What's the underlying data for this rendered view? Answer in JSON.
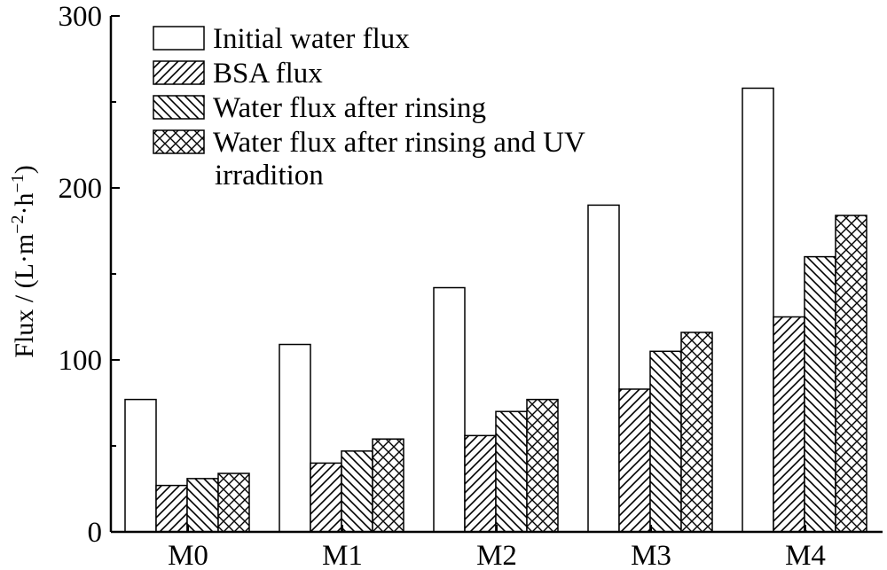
{
  "chart_data": {
    "type": "bar",
    "categories": [
      "M0",
      "M1",
      "M2",
      "M3",
      "M4"
    ],
    "series": [
      {
        "name": "Initial water flux",
        "values": [
          77,
          109,
          142,
          190,
          258
        ],
        "pattern": "none"
      },
      {
        "name": "BSA flux",
        "values": [
          27,
          40,
          56,
          83,
          125
        ],
        "pattern": "forward-hatch"
      },
      {
        "name": "Water flux after rinsing",
        "values": [
          31,
          47,
          70,
          105,
          160
        ],
        "pattern": "back-hatch"
      },
      {
        "name": "Water flux after rinsing and UV irradition",
        "values": [
          34,
          54,
          77,
          116,
          184
        ],
        "pattern": "cross-hatch"
      }
    ],
    "legend_lines": [
      [
        "Initial water flux"
      ],
      [
        "BSA flux"
      ],
      [
        "Water flux after rinsing"
      ],
      [
        "Water flux after rinsing and UV",
        "irradition"
      ]
    ],
    "ylabel_main": "Flux / (L·m",
    "ylabel_sup1": "−2",
    "ylabel_mid": "·h",
    "ylabel_sup2": "−1",
    "ylabel_end": ")",
    "xlabel": "",
    "ylim": [
      0,
      300
    ],
    "yticks": [
      0,
      100,
      200,
      300
    ],
    "grid": false,
    "legend_position": "top-left",
    "colors": {
      "bar_fill": "#ffffff",
      "stroke": "#000000",
      "background": "#ffffff"
    }
  }
}
